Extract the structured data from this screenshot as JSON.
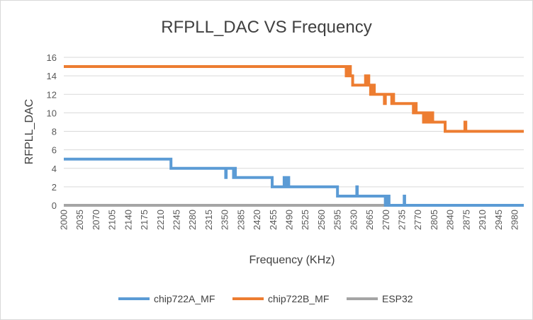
{
  "chart_data": {
    "type": "line",
    "title": "RFPLL_DAC VS Frequency",
    "xlabel": "Frequency (KHz)",
    "ylabel": "RFPLL_DAC",
    "xlim": [
      2000,
      3000
    ],
    "ylim": [
      0,
      16
    ],
    "y_ticks": [
      0,
      2,
      4,
      6,
      8,
      10,
      12,
      14,
      16
    ],
    "x_ticks": [
      2000,
      2035,
      2070,
      2105,
      2140,
      2175,
      2210,
      2245,
      2280,
      2315,
      2350,
      2385,
      2420,
      2455,
      2490,
      2525,
      2560,
      2595,
      2630,
      2665,
      2700,
      2735,
      2770,
      2805,
      2840,
      2875,
      2910,
      2945,
      2980
    ],
    "grid": "horizontal",
    "legend": "bottom",
    "series": [
      {
        "name": "chip722A_MF",
        "color": "#5b9bd5",
        "x": [
          2000,
          2233,
          2233,
          2352,
          2352,
          2353,
          2353,
          2369,
          2369,
          2371,
          2371,
          2373,
          2373,
          2375,
          2375,
          2453,
          2453,
          2479,
          2479,
          2481,
          2481,
          2483,
          2483,
          2485,
          2485,
          2487,
          2487,
          2489,
          2489,
          2491,
          2491,
          2595,
          2595,
          2637,
          2637,
          2638,
          2638,
          2699,
          2699,
          2701,
          2701,
          2703,
          2703,
          2705,
          2705,
          2707,
          2707,
          2740,
          2740,
          2741,
          2741,
          3000
        ],
        "y": [
          5,
          5,
          4,
          4,
          3,
          3,
          4,
          4,
          3,
          3,
          4,
          4,
          3,
          3,
          3,
          3,
          2,
          2,
          3,
          3,
          2,
          2,
          3,
          3,
          2,
          2,
          3,
          3,
          2,
          2,
          2,
          2,
          1,
          1,
          2,
          2,
          1,
          1,
          0,
          0,
          1,
          1,
          0,
          0,
          1,
          1,
          0,
          0,
          1,
          1,
          0,
          0
        ]
      },
      {
        "name": "chip722B_MF",
        "color": "#ed7d31",
        "x": [
          2000,
          2614,
          2614,
          2616,
          2616,
          2618,
          2618,
          2621,
          2621,
          2623,
          2623,
          2628,
          2628,
          2656,
          2656,
          2658,
          2658,
          2660,
          2660,
          2663,
          2663,
          2667,
          2667,
          2669,
          2669,
          2670,
          2670,
          2672,
          2672,
          2675,
          2675,
          2697,
          2697,
          2699,
          2699,
          2713,
          2713,
          2715,
          2715,
          2717,
          2717,
          2760,
          2760,
          2763,
          2763,
          2766,
          2766,
          2782,
          2782,
          2785,
          2785,
          2789,
          2789,
          2792,
          2792,
          2795,
          2795,
          2798,
          2798,
          2802,
          2802,
          2829,
          2829,
          2872,
          2872,
          2874,
          2874,
          3000
        ],
        "y": [
          15,
          15,
          14,
          14,
          15,
          15,
          14,
          14,
          15,
          15,
          14,
          14,
          13,
          13,
          14,
          14,
          13,
          13,
          14,
          14,
          13,
          13,
          12,
          12,
          13,
          13,
          12,
          12,
          13,
          13,
          12,
          12,
          11,
          11,
          12,
          12,
          11,
          11,
          12,
          12,
          11,
          11,
          10,
          10,
          11,
          11,
          10,
          10,
          9,
          9,
          10,
          10,
          9,
          9,
          10,
          10,
          9,
          9,
          10,
          10,
          9,
          9,
          8,
          8,
          9,
          9,
          8,
          8
        ]
      },
      {
        "name": "ESP32",
        "color": "#a5a5a5",
        "x": [
          2000,
          3000
        ],
        "y": [
          0,
          0
        ]
      }
    ]
  }
}
